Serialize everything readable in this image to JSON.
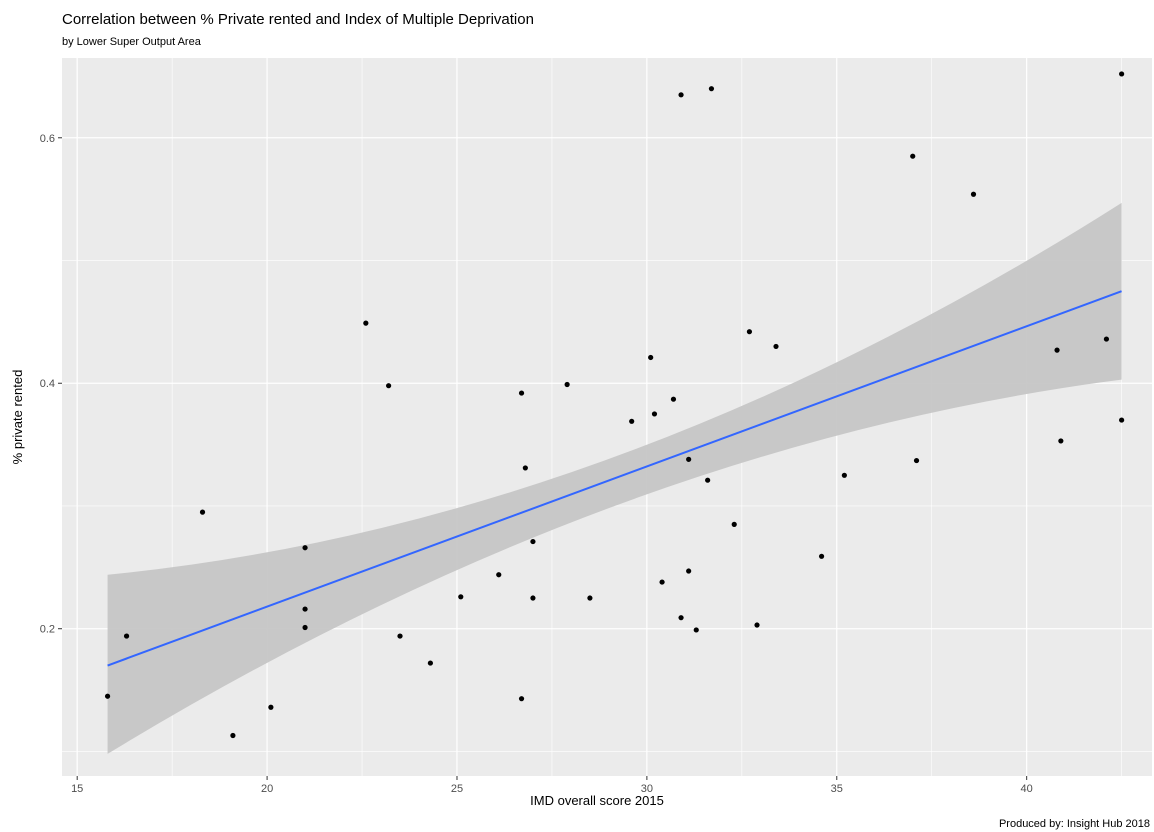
{
  "chart_data": {
    "type": "scatter",
    "title": "Correlation between % Private rented and Index of Multiple Deprivation",
    "subtitle": "by Lower Super Output Area",
    "xlabel": "IMD overall score 2015",
    "ylabel": "% private rented",
    "caption": "Produced by: Insight Hub 2018",
    "xlim": [
      14.6,
      43.3
    ],
    "ylim": [
      0.08,
      0.665
    ],
    "x_ticks": [
      15,
      20,
      25,
      30,
      35,
      40
    ],
    "x_tick_labels": [
      "15",
      "20",
      "25",
      "30",
      "35",
      "40"
    ],
    "y_ticks": [
      0.2,
      0.4,
      0.6
    ],
    "y_tick_labels": [
      "0.2",
      "0.4",
      "0.6"
    ],
    "grid": true,
    "colors": {
      "panel": "#ebebeb",
      "grid": "#ffffff",
      "point": "#000000",
      "line": "#3366ff",
      "ribbon": "#c6c6c6"
    },
    "points": [
      {
        "x": 15.8,
        "y": 0.145
      },
      {
        "x": 16.3,
        "y": 0.194
      },
      {
        "x": 18.3,
        "y": 0.295
      },
      {
        "x": 19.1,
        "y": 0.113
      },
      {
        "x": 20.1,
        "y": 0.136
      },
      {
        "x": 21.0,
        "y": 0.266
      },
      {
        "x": 21.0,
        "y": 0.216
      },
      {
        "x": 21.0,
        "y": 0.201
      },
      {
        "x": 22.6,
        "y": 0.449
      },
      {
        "x": 23.2,
        "y": 0.398
      },
      {
        "x": 23.5,
        "y": 0.194
      },
      {
        "x": 24.3,
        "y": 0.172
      },
      {
        "x": 25.1,
        "y": 0.226
      },
      {
        "x": 26.1,
        "y": 0.244
      },
      {
        "x": 26.7,
        "y": 0.392
      },
      {
        "x": 26.7,
        "y": 0.143
      },
      {
        "x": 26.8,
        "y": 0.331
      },
      {
        "x": 27.0,
        "y": 0.271
      },
      {
        "x": 27.0,
        "y": 0.225
      },
      {
        "x": 27.9,
        "y": 0.399
      },
      {
        "x": 28.5,
        "y": 0.225
      },
      {
        "x": 29.6,
        "y": 0.369
      },
      {
        "x": 30.1,
        "y": 0.421
      },
      {
        "x": 30.2,
        "y": 0.375
      },
      {
        "x": 30.4,
        "y": 0.238
      },
      {
        "x": 30.7,
        "y": 0.387
      },
      {
        "x": 30.9,
        "y": 0.635
      },
      {
        "x": 30.9,
        "y": 0.209
      },
      {
        "x": 31.1,
        "y": 0.338
      },
      {
        "x": 31.1,
        "y": 0.247
      },
      {
        "x": 31.3,
        "y": 0.199
      },
      {
        "x": 31.6,
        "y": 0.321
      },
      {
        "x": 31.7,
        "y": 0.64
      },
      {
        "x": 32.3,
        "y": 0.285
      },
      {
        "x": 32.7,
        "y": 0.442
      },
      {
        "x": 32.9,
        "y": 0.203
      },
      {
        "x": 33.4,
        "y": 0.43
      },
      {
        "x": 34.6,
        "y": 0.259
      },
      {
        "x": 35.2,
        "y": 0.325
      },
      {
        "x": 37.0,
        "y": 0.585
      },
      {
        "x": 37.1,
        "y": 0.337
      },
      {
        "x": 38.6,
        "y": 0.554
      },
      {
        "x": 40.8,
        "y": 0.427
      },
      {
        "x": 40.9,
        "y": 0.353
      },
      {
        "x": 42.1,
        "y": 0.436
      },
      {
        "x": 42.5,
        "y": 0.37
      },
      {
        "x": 42.5,
        "y": 0.652
      }
    ],
    "trend": {
      "method": "linear regression",
      "x": [
        15.8,
        42.5
      ],
      "y": [
        0.17,
        0.475
      ],
      "band_lower": [
        0.098,
        0.403
      ],
      "band_upper": [
        0.244,
        0.547
      ],
      "band_mid_lower": 0.3,
      "band_mid_upper": 0.34,
      "band_mid_x": 29.15
    }
  }
}
